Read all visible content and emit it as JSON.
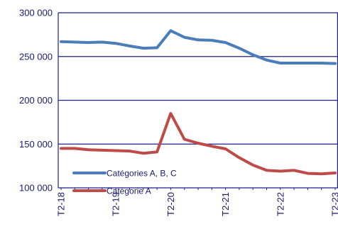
{
  "chart_data": {
    "type": "line",
    "title": "",
    "xlabel": "",
    "ylabel": "",
    "ylim": [
      100000,
      300000
    ],
    "y_ticks": [
      {
        "value": 100000,
        "label": "100 000"
      },
      {
        "value": 150000,
        "label": "150 000"
      },
      {
        "value": 200000,
        "label": "200 000"
      },
      {
        "value": 250000,
        "label": "250 000"
      },
      {
        "value": 300000,
        "label": "300 000"
      }
    ],
    "x_tick_labels": [
      "T2-18",
      "T2-19",
      "T2-20",
      "T2-21",
      "T2-22",
      "T2-23"
    ],
    "x": [
      "T2-18",
      "T3-18",
      "T4-18",
      "T1-19",
      "T2-19",
      "T3-19",
      "T4-19",
      "T1-20",
      "T2-20",
      "T3-20",
      "T4-20",
      "T1-21",
      "T2-21",
      "T3-21",
      "T4-21",
      "T1-22",
      "T2-22",
      "T3-22",
      "T4-22",
      "T1-23",
      "T2-23"
    ],
    "grid": true,
    "legend_position": "bottom-left",
    "series": [
      {
        "name": "Catégories A, B, C",
        "color": "#4a7ebb",
        "values": [
          267000,
          266500,
          266000,
          266500,
          265000,
          262000,
          259500,
          260000,
          279500,
          272000,
          269000,
          268500,
          266000,
          259500,
          252000,
          246000,
          242500,
          242500,
          242500,
          242500,
          242000
        ]
      },
      {
        "name": "Catégorie A",
        "color": "#be4b48",
        "values": [
          145000,
          145000,
          143500,
          143000,
          142500,
          142000,
          139500,
          141000,
          185000,
          155500,
          151000,
          147500,
          144500,
          134500,
          126000,
          120000,
          119000,
          120000,
          116500,
          116000,
          117000
        ]
      }
    ]
  }
}
